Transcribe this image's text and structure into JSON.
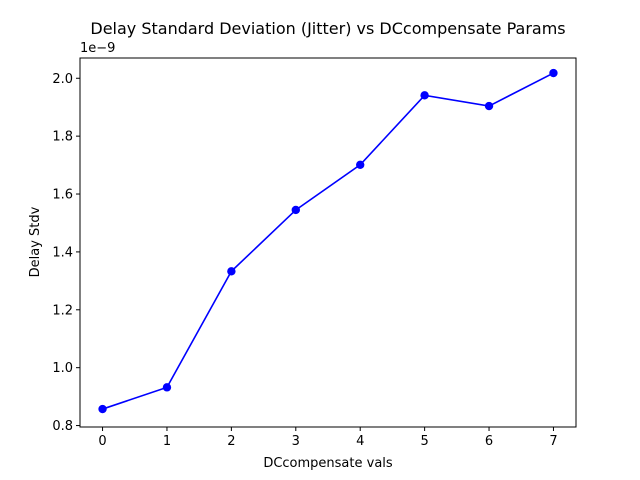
{
  "chart_data": {
    "type": "line",
    "title": "Delay Standard Deviation (Jitter) vs DCcompensate Params",
    "xlabel": "DCcompensate vals",
    "ylabel": "Delay Stdv",
    "y_offset_label": "1e−9",
    "xlim": [
      -0.35,
      7.35
    ],
    "ylim": [
      0.795,
      2.07
    ],
    "x_ticks": [
      0,
      1,
      2,
      3,
      4,
      5,
      6,
      7
    ],
    "x_tick_labels": [
      "0",
      "1",
      "2",
      "3",
      "4",
      "5",
      "6",
      "7"
    ],
    "y_ticks": [
      0.8,
      1.0,
      1.2,
      1.4,
      1.6,
      1.8,
      2.0
    ],
    "y_tick_labels": [
      "0.8",
      "1.0",
      "1.2",
      "1.4",
      "1.6",
      "1.8",
      "2.0"
    ],
    "grid": false,
    "series": [
      {
        "x": [
          0,
          1,
          2,
          3,
          4,
          5,
          6,
          7
        ],
        "values": [
          0.857,
          0.932,
          1.333,
          1.545,
          1.701,
          1.941,
          1.904,
          2.018
        ],
        "color": "#0000ff",
        "marker": "circle"
      }
    ]
  }
}
